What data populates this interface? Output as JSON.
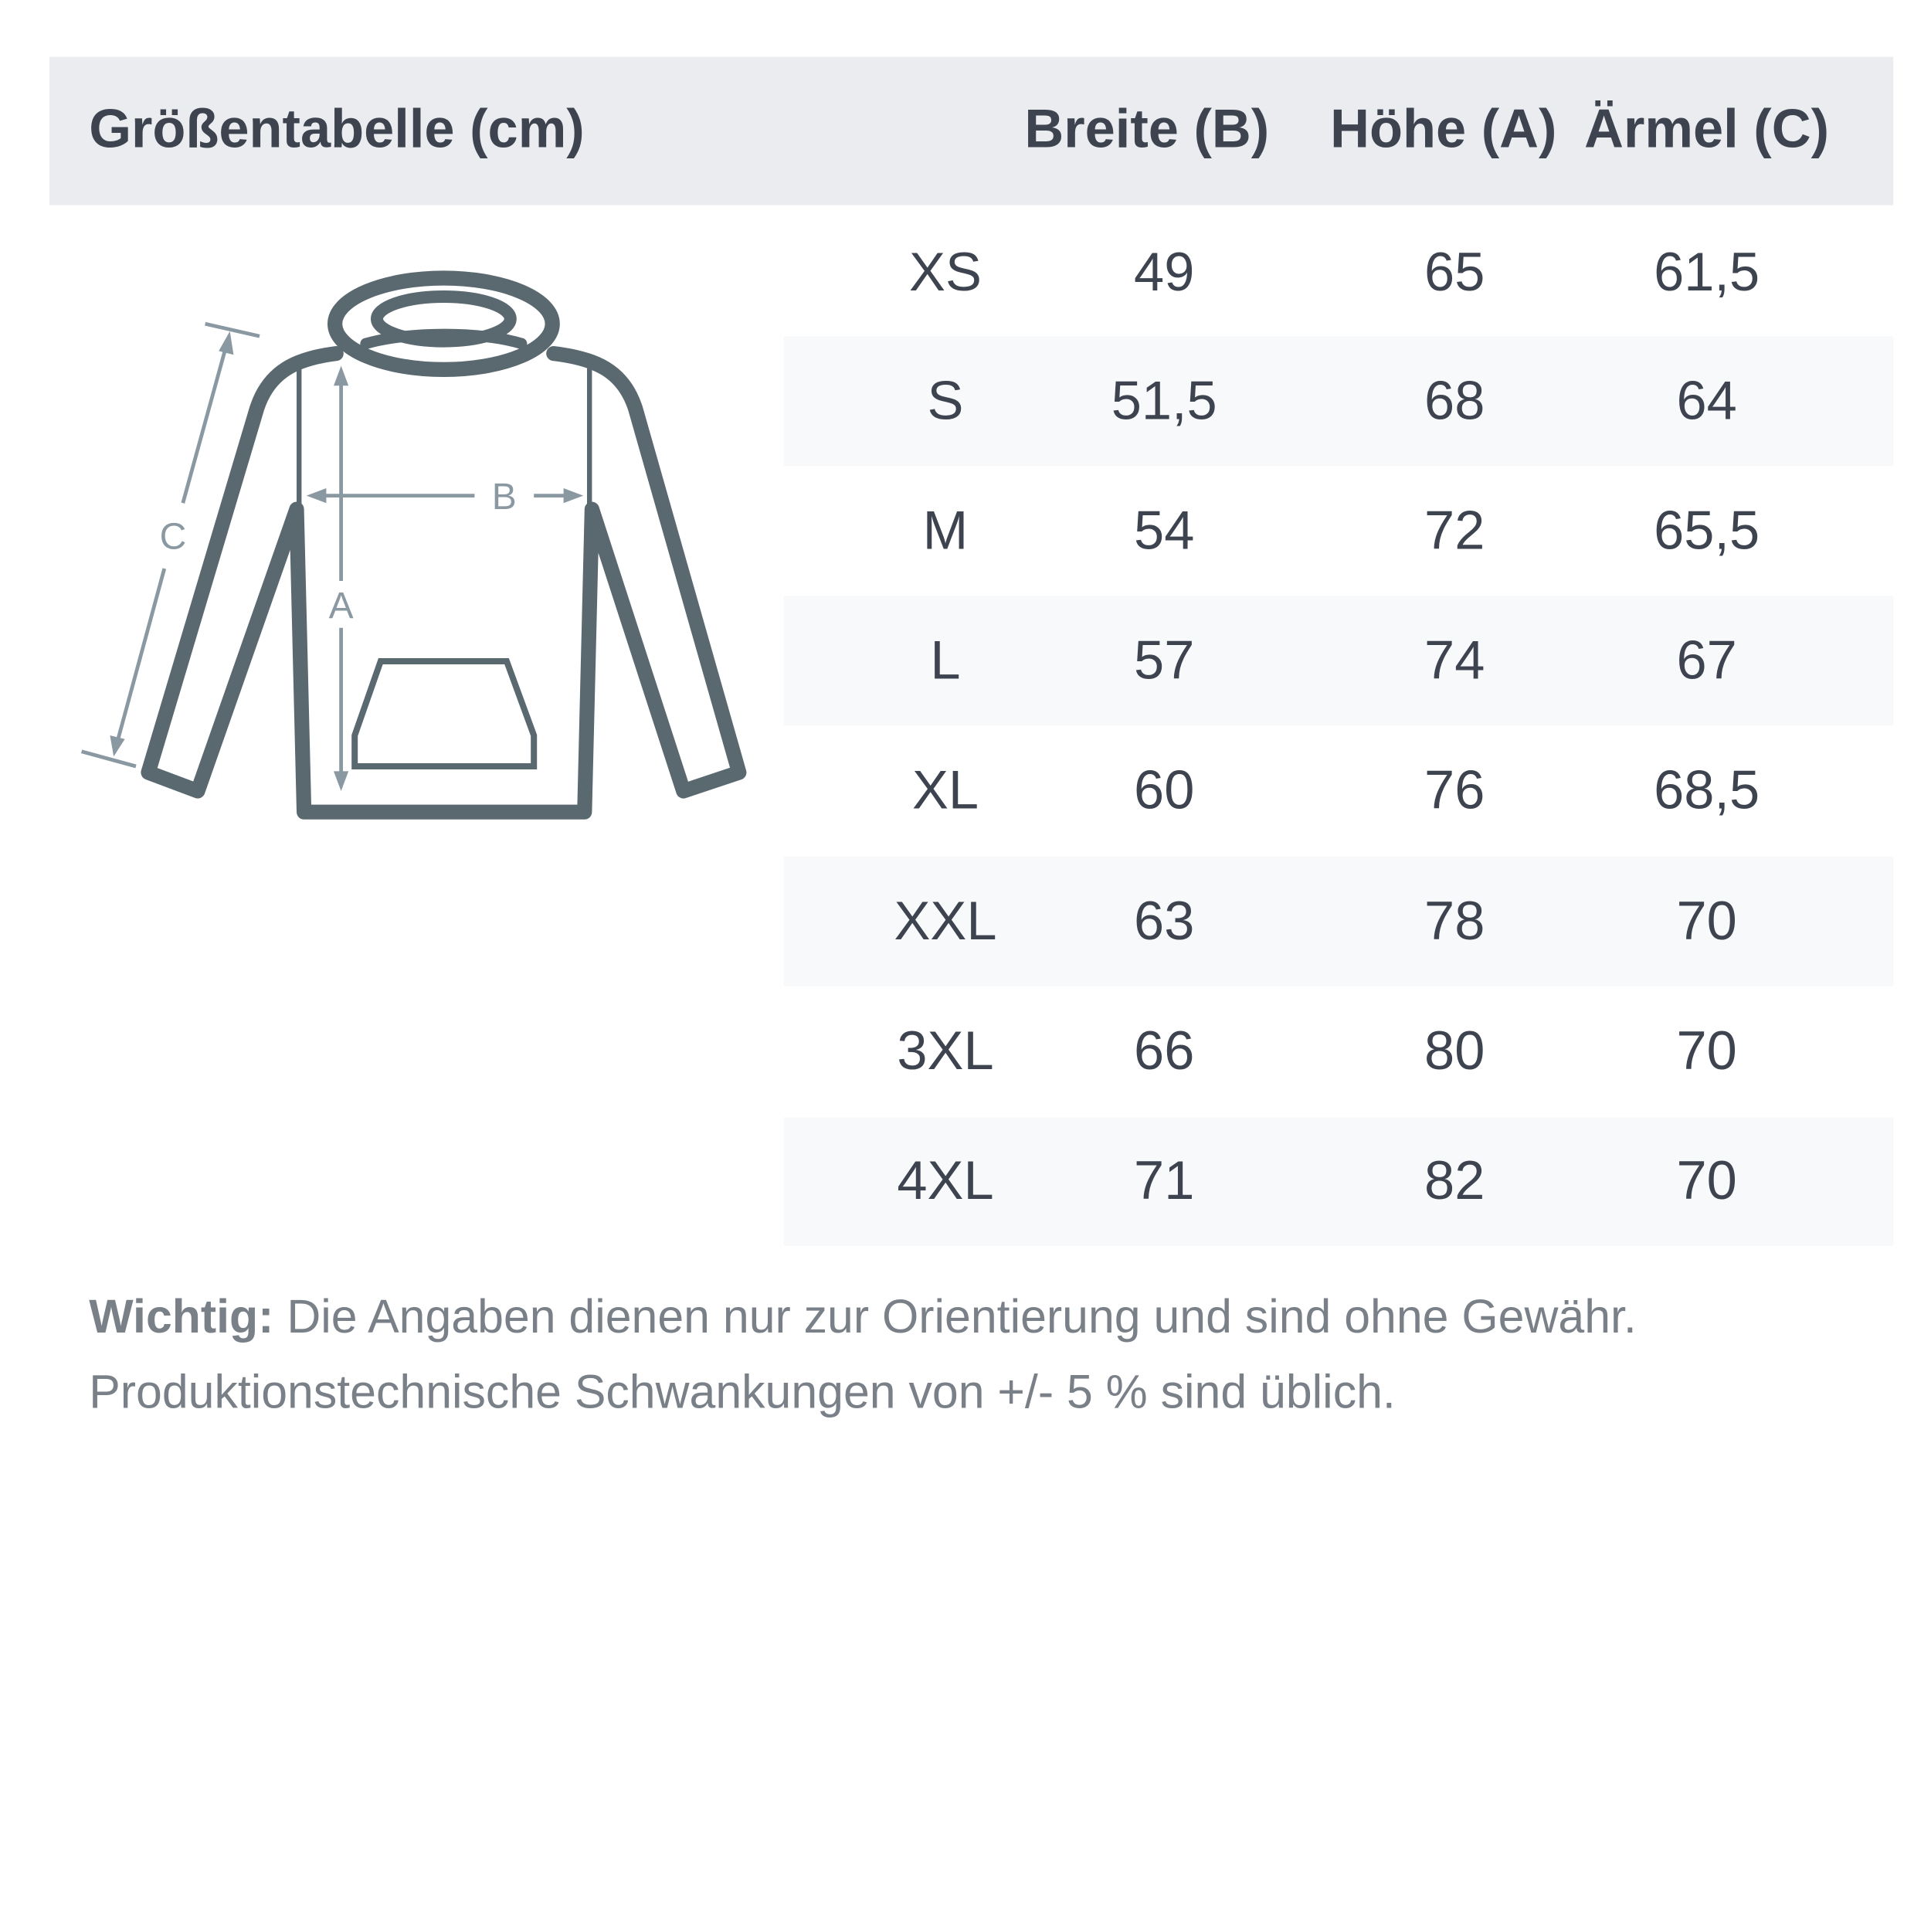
{
  "header": {
    "title": "Größentabelle (cm)",
    "columns": [
      "Breite (B)",
      "Höhe (A)",
      "Ärmel (C)"
    ]
  },
  "diagram": {
    "icon": "hoodie-measurement-icon",
    "labels": {
      "a": "A",
      "b": "B",
      "c": "C"
    }
  },
  "rows": [
    {
      "size": "XS",
      "breite": "49",
      "hoehe": "65",
      "aermel": "61,5"
    },
    {
      "size": "S",
      "breite": "51,5",
      "hoehe": "68",
      "aermel": "64"
    },
    {
      "size": "M",
      "breite": "54",
      "hoehe": "72",
      "aermel": "65,5"
    },
    {
      "size": "L",
      "breite": "57",
      "hoehe": "74",
      "aermel": "67"
    },
    {
      "size": "XL",
      "breite": "60",
      "hoehe": "76",
      "aermel": "68,5"
    },
    {
      "size": "XXL",
      "breite": "63",
      "hoehe": "78",
      "aermel": "70"
    },
    {
      "size": "3XL",
      "breite": "66",
      "hoehe": "80",
      "aermel": "70"
    },
    {
      "size": "4XL",
      "breite": "71",
      "hoehe": "82",
      "aermel": "70"
    }
  ],
  "note": {
    "label": "Wichtig:",
    "line1": " Die Angaben dienen nur zur Orientierung und sind ohne Gewähr.",
    "line2": "Produktionstechnische Schwankungen von +/- 5 % sind üblich."
  },
  "colors": {
    "header_bg": "#eaecf0",
    "stripe": "#f8f9fb",
    "text": "#3d4450",
    "outline": "#5a6870",
    "arrows": "#8a98a2"
  }
}
